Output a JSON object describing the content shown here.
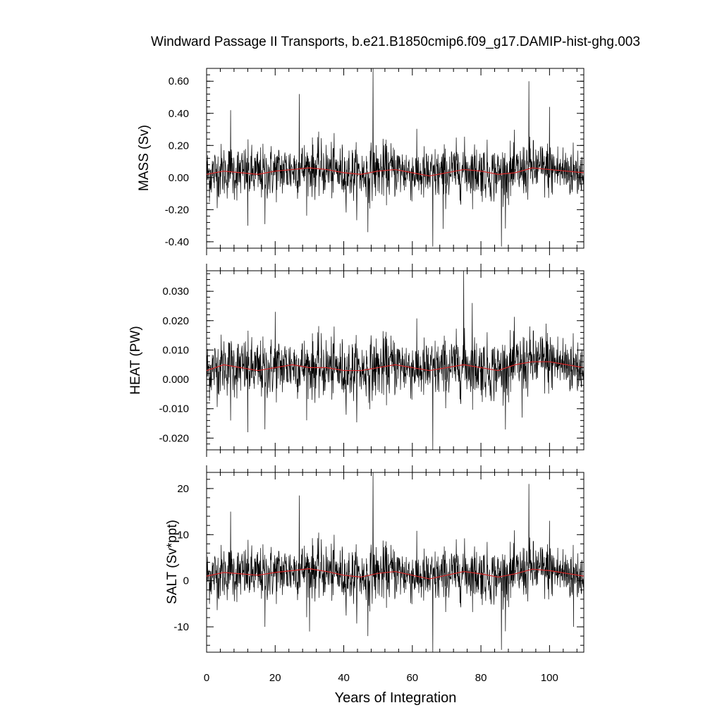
{
  "chart_data": [
    {
      "type": "line",
      "title": "Windward Passage II Transports, b.e21.B1850cmip6.f09_g17.DAMIP-hist-ghg.003",
      "xlabel": "Years of Integration",
      "shared_x": true,
      "xlim": [
        0,
        110
      ],
      "x_ticks": [
        0,
        20,
        40,
        60,
        80,
        100
      ],
      "x_tick_labels": [
        "0",
        "20",
        "40",
        "60",
        "80",
        "100"
      ],
      "grid": false,
      "line_colors": {
        "raw": "#000000",
        "smoothed": "#d62728"
      },
      "panels": [
        {
          "ylabel": "MASS (Sv)",
          "ylim": [
            -0.44,
            0.68
          ],
          "y_ticks": [
            -0.4,
            -0.2,
            0.0,
            0.2,
            0.4,
            0.6
          ],
          "y_tick_labels": [
            "-0.40",
            "-0.20",
            "0.00",
            "0.20",
            "0.40",
            "0.60"
          ],
          "mean": 0.03,
          "sd": 0.085,
          "smoothed": [
            [
              0,
              0.02
            ],
            [
              5,
              0.04
            ],
            [
              10,
              0.03
            ],
            [
              15,
              0.02
            ],
            [
              20,
              0.04
            ],
            [
              25,
              0.05
            ],
            [
              30,
              0.06
            ],
            [
              35,
              0.05
            ],
            [
              40,
              0.03
            ],
            [
              45,
              0.02
            ],
            [
              50,
              0.04
            ],
            [
              55,
              0.05
            ],
            [
              60,
              0.03
            ],
            [
              65,
              0.01
            ],
            [
              70,
              0.03
            ],
            [
              75,
              0.05
            ],
            [
              80,
              0.04
            ],
            [
              85,
              0.02
            ],
            [
              90,
              0.03
            ],
            [
              95,
              0.06
            ],
            [
              100,
              0.05
            ],
            [
              105,
              0.04
            ],
            [
              110,
              0.03
            ]
          ],
          "spikes": [
            [
              0,
              -0.32
            ],
            [
              7,
              0.42
            ],
            [
              27,
              0.52
            ],
            [
              48.5,
              0.68
            ],
            [
              47,
              -0.34
            ],
            [
              66,
              -0.43
            ],
            [
              86,
              -0.43
            ],
            [
              94,
              0.6
            ],
            [
              100,
              0.44
            ],
            [
              69,
              -0.32
            ],
            [
              12,
              -0.3
            ],
            [
              17,
              -0.29
            ]
          ]
        },
        {
          "ylabel": "HEAT (PW)",
          "ylim": [
            -0.024,
            0.037
          ],
          "y_ticks": [
            -0.02,
            -0.01,
            0.0,
            0.01,
            0.02,
            0.03
          ],
          "y_tick_labels": [
            "-0.020",
            "-0.010",
            "0.000",
            "0.010",
            "0.020",
            "0.030"
          ],
          "mean": 0.004,
          "sd": 0.0052,
          "smoothed": [
            [
              0,
              0.003
            ],
            [
              5,
              0.005
            ],
            [
              10,
              0.004
            ],
            [
              15,
              0.003
            ],
            [
              20,
              0.004
            ],
            [
              25,
              0.005
            ],
            [
              30,
              0.004
            ],
            [
              35,
              0.004
            ],
            [
              40,
              0.003
            ],
            [
              45,
              0.003
            ],
            [
              50,
              0.004
            ],
            [
              55,
              0.005
            ],
            [
              60,
              0.004
            ],
            [
              65,
              0.003
            ],
            [
              70,
              0.004
            ],
            [
              75,
              0.005
            ],
            [
              80,
              0.004
            ],
            [
              85,
              0.003
            ],
            [
              90,
              0.005
            ],
            [
              95,
              0.006
            ],
            [
              100,
              0.006
            ],
            [
              105,
              0.005
            ],
            [
              110,
              0.004
            ]
          ],
          "spikes": [
            [
              0,
              -0.012
            ],
            [
              12,
              -0.018
            ],
            [
              17,
              -0.017
            ],
            [
              20,
              0.023
            ],
            [
              75,
              0.037
            ],
            [
              77.5,
              0.026
            ],
            [
              66,
              -0.024
            ],
            [
              92,
              -0.013
            ],
            [
              7,
              -0.014
            ],
            [
              99,
              0.019
            ]
          ]
        },
        {
          "ylabel": "SALT (Sv*ppt)",
          "ylim": [
            -15.5,
            23.5
          ],
          "y_ticks": [
            -10,
            0,
            10,
            20
          ],
          "y_tick_labels": [
            "-10",
            "0",
            "10",
            "20"
          ],
          "mean": 1.2,
          "sd": 3.0,
          "smoothed": [
            [
              0,
              1.0
            ],
            [
              5,
              1.8
            ],
            [
              10,
              1.5
            ],
            [
              15,
              1.2
            ],
            [
              20,
              1.8
            ],
            [
              25,
              2.2
            ],
            [
              30,
              2.6
            ],
            [
              35,
              2.0
            ],
            [
              40,
              1.2
            ],
            [
              45,
              0.8
            ],
            [
              50,
              1.6
            ],
            [
              55,
              2.0
            ],
            [
              60,
              1.2
            ],
            [
              65,
              0.4
            ],
            [
              70,
              1.2
            ],
            [
              75,
              2.0
            ],
            [
              80,
              1.5
            ],
            [
              85,
              0.8
            ],
            [
              90,
              1.5
            ],
            [
              95,
              2.5
            ],
            [
              100,
              2.2
            ],
            [
              105,
              1.6
            ],
            [
              110,
              1.0
            ]
          ],
          "spikes": [
            [
              0,
              -11
            ],
            [
              7,
              15
            ],
            [
              27,
              18.5
            ],
            [
              48.5,
              23.5
            ],
            [
              47,
              -12
            ],
            [
              66,
              -15.5
            ],
            [
              86,
              -15
            ],
            [
              94,
              21
            ],
            [
              100,
              13
            ],
            [
              30,
              -11
            ],
            [
              17,
              -10
            ],
            [
              107,
              -10
            ]
          ]
        }
      ]
    }
  ]
}
